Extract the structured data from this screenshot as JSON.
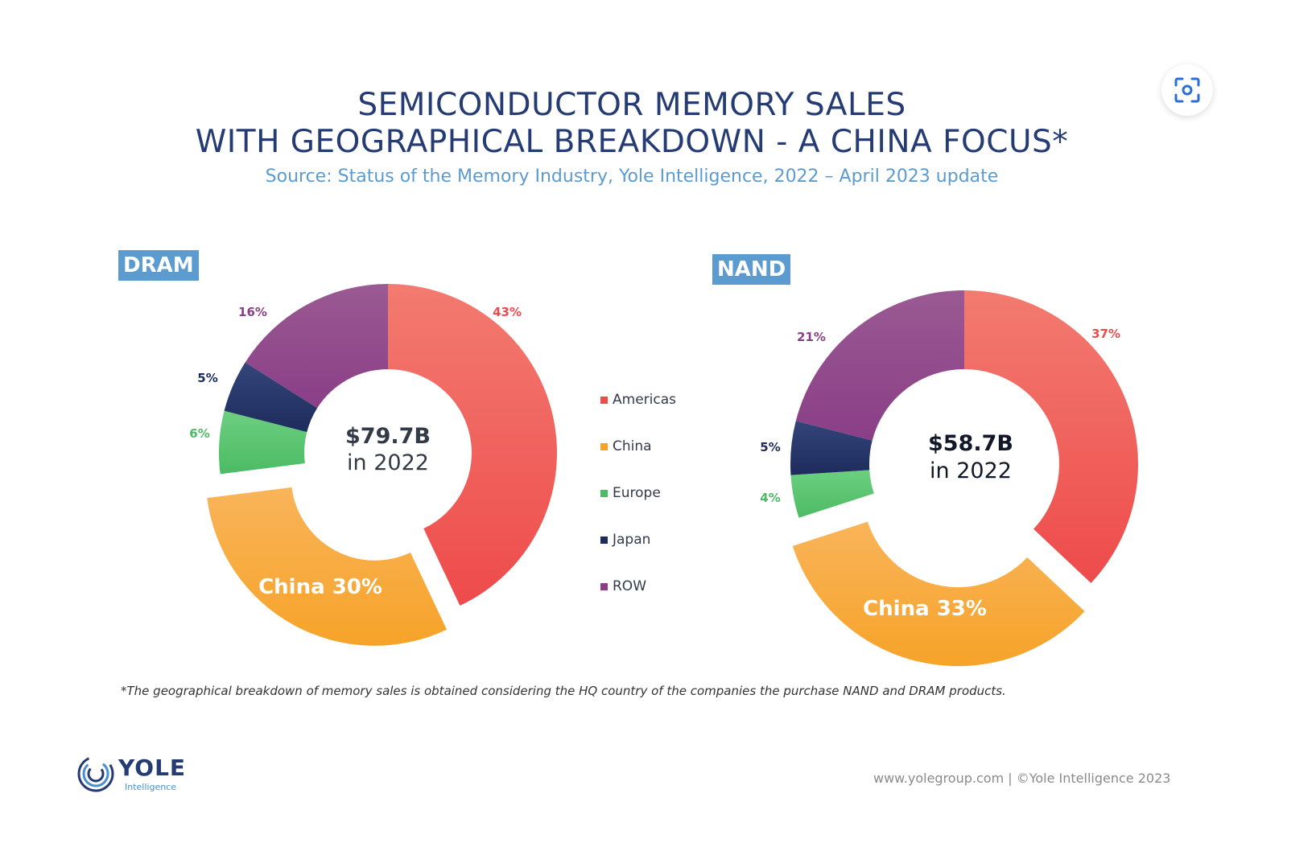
{
  "title_line1": "SEMICONDUCTOR MEMORY SALES",
  "title_line2": "WITH GEOGRAPHICAL BREAKDOWN - A CHINA FOCUS*",
  "subtitle": "Source: Status of the Memory Industry, Yole Intelligence, 2022 – April 2023 update",
  "colors": {
    "Americas": "#ee4b4b",
    "China": "#f6a328",
    "Europe": "#4cbb64",
    "Japan": "#1d2c5c",
    "ROW": "#8a3e86",
    "title": "#253b74",
    "accent": "#5b9bd0"
  },
  "legend": [
    "Americas",
    "China",
    "Europe",
    "Japan",
    "ROW"
  ],
  "chart_data": [
    {
      "type": "pie",
      "title": "DRAM",
      "center_value": "$79.7B",
      "center_sub": "in 2022",
      "categories": [
        "Americas",
        "China",
        "Europe",
        "Japan",
        "ROW"
      ],
      "values": [
        43,
        30,
        6,
        5,
        16
      ],
      "labels": [
        "43%",
        "China 30%",
        "6%",
        "5%",
        "16%"
      ],
      "exploded": [
        "China"
      ]
    },
    {
      "type": "pie",
      "title": "NAND",
      "center_value": "$58.7B",
      "center_sub": "in 2022",
      "categories": [
        "Americas",
        "China",
        "Europe",
        "Japan",
        "ROW"
      ],
      "values": [
        37,
        33,
        4,
        5,
        21
      ],
      "labels": [
        "37%",
        "China 33%",
        "4%",
        "5%",
        "21%"
      ],
      "exploded": [
        "China"
      ]
    }
  ],
  "footnote": "*The geographical breakdown of memory sales is obtained considering the HQ country of the companies the purchase NAND and DRAM products.",
  "footer": "www.yolegroup.com | ©Yole Intelligence 2023",
  "logo": {
    "name": "YOLE",
    "sub": "Intelligence"
  },
  "scan_button_icon": "scan-icon"
}
